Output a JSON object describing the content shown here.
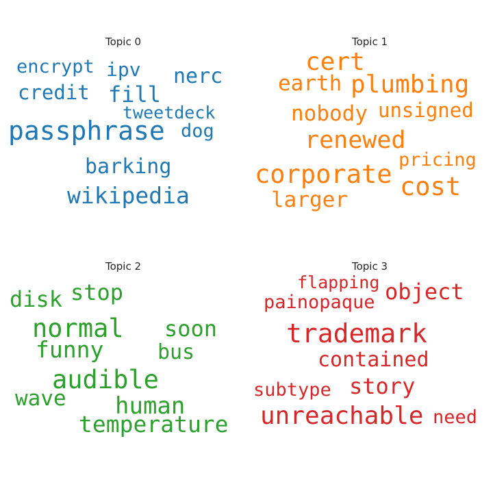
{
  "chart_data": [
    {
      "type": "wordcloud",
      "title": "Topic 0",
      "color": "#1f77b4",
      "words": [
        {
          "text": "passphrase",
          "weight": 1.0
        },
        {
          "text": "wikipedia",
          "weight": 0.82
        },
        {
          "text": "fill",
          "weight": 0.78
        },
        {
          "text": "barking",
          "weight": 0.72
        },
        {
          "text": "nerc",
          "weight": 0.68
        },
        {
          "text": "credit",
          "weight": 0.68
        },
        {
          "text": "encrypt",
          "weight": 0.64
        },
        {
          "text": "ipv",
          "weight": 0.64
        },
        {
          "text": "dog",
          "weight": 0.6
        },
        {
          "text": "tweetdeck",
          "weight": 0.58
        }
      ]
    },
    {
      "type": "wordcloud",
      "title": "Topic 1",
      "color": "#ff7f0e",
      "words": [
        {
          "text": "corporate",
          "weight": 0.9
        },
        {
          "text": "cost",
          "weight": 0.9
        },
        {
          "text": "cert",
          "weight": 0.88
        },
        {
          "text": "plumbing",
          "weight": 0.88
        },
        {
          "text": "renewed",
          "weight": 0.84
        },
        {
          "text": "earth",
          "weight": 0.78
        },
        {
          "text": "nobody",
          "weight": 0.76
        },
        {
          "text": "larger",
          "weight": 0.76
        },
        {
          "text": "unsigned",
          "weight": 0.7
        },
        {
          "text": "pricing",
          "weight": 0.64
        }
      ]
    },
    {
      "type": "wordcloud",
      "title": "Topic 2",
      "color": "#2ca02c",
      "words": [
        {
          "text": "normal",
          "weight": 0.9
        },
        {
          "text": "audible",
          "weight": 0.9
        },
        {
          "text": "human",
          "weight": 0.8
        },
        {
          "text": "funny",
          "weight": 0.78
        },
        {
          "text": "temperature",
          "weight": 0.78
        },
        {
          "text": "stop",
          "weight": 0.74
        },
        {
          "text": "disk",
          "weight": 0.74
        },
        {
          "text": "soon",
          "weight": 0.74
        },
        {
          "text": "wave",
          "weight": 0.72
        },
        {
          "text": "bus",
          "weight": 0.7
        }
      ]
    },
    {
      "type": "wordcloud",
      "title": "Topic 3",
      "color": "#d62728",
      "words": [
        {
          "text": "trademark",
          "weight": 0.9
        },
        {
          "text": "unreachable",
          "weight": 0.84
        },
        {
          "text": "object",
          "weight": 0.76
        },
        {
          "text": "story",
          "weight": 0.76
        },
        {
          "text": "contained",
          "weight": 0.72
        },
        {
          "text": "painopaque",
          "weight": 0.66
        },
        {
          "text": "subtype",
          "weight": 0.64
        },
        {
          "text": "need",
          "weight": 0.64
        },
        {
          "text": "flapping",
          "weight": 0.62
        }
      ]
    }
  ]
}
